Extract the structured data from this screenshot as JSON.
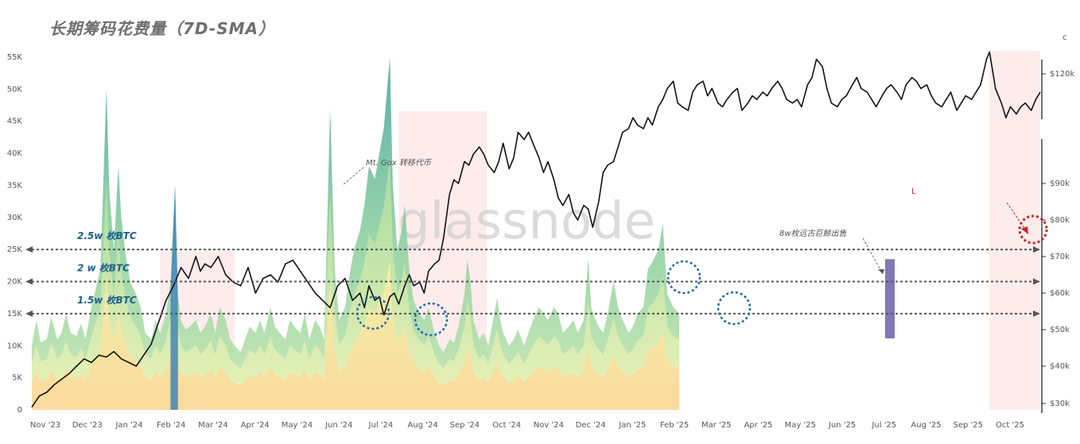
{
  "title": "长期筹码花费量（7D-SMA）",
  "watermark": "glassnode",
  "chart_data": {
    "type": "area",
    "title": "长期筹码花费量（7D-SMA）",
    "x_ticks": [
      "Nov '23",
      "Dec '23",
      "Jan '24",
      "Feb '24",
      "Mar '24",
      "Apr '24",
      "May '24",
      "Jun '24",
      "Jul '24",
      "Aug '24",
      "Sep '24",
      "Oct '24",
      "Nov '24",
      "Dec '24",
      "Jan '25",
      "Feb '25",
      "Mar '25",
      "Apr '25",
      "May '25",
      "Jun '25",
      "Jul '25",
      "Aug '25",
      "Sep '25",
      "Oct '25"
    ],
    "left_axis": {
      "ticks": [
        "0",
        "5K",
        "10K",
        "15K",
        "20K",
        "25K",
        "30K",
        "35K",
        "40K",
        "45K",
        "50K",
        "55K"
      ],
      "ylim": [
        0,
        55000
      ]
    },
    "right_axis": {
      "ticks": [
        "$30k",
        "$40k",
        "$50k",
        "$60k",
        "$70k",
        "$80k",
        "$90k",
        "$120k"
      ]
    },
    "spent_btc_7d_sma": [
      [
        0,
        10000
      ],
      [
        0.3,
        14000
      ],
      [
        0.6,
        10500
      ],
      [
        1,
        11000
      ],
      [
        1.3,
        14500
      ],
      [
        1.7,
        11000
      ],
      [
        2,
        12000
      ],
      [
        2.3,
        15000
      ],
      [
        2.6,
        12000
      ],
      [
        3,
        11500
      ],
      [
        3.3,
        13500
      ],
      [
        3.6,
        11000
      ],
      [
        4,
        16000
      ],
      [
        4.3,
        19000
      ],
      [
        4.6,
        22000
      ],
      [
        5,
        50000
      ],
      [
        5.2,
        34000
      ],
      [
        5.5,
        25000
      ],
      [
        5.8,
        38000
      ],
      [
        6,
        30000
      ],
      [
        6.3,
        24000
      ],
      [
        6.6,
        20000
      ],
      [
        7,
        18000
      ],
      [
        7.3,
        16000
      ],
      [
        7.6,
        12000
      ],
      [
        8,
        11000
      ],
      [
        8.3,
        14000
      ],
      [
        8.6,
        12000
      ],
      [
        9,
        15000
      ],
      [
        9.3,
        20000
      ],
      [
        9.6,
        35000
      ],
      [
        9.8,
        18000
      ],
      [
        10,
        14000
      ],
      [
        10.3,
        12500
      ],
      [
        10.6,
        13000
      ],
      [
        11,
        14000
      ],
      [
        11.3,
        12000
      ],
      [
        11.6,
        13000
      ],
      [
        12,
        15000
      ],
      [
        12.3,
        12000
      ],
      [
        12.6,
        16000
      ],
      [
        13,
        14000
      ],
      [
        13.3,
        11000
      ],
      [
        13.6,
        10000
      ],
      [
        14,
        9000
      ],
      [
        14.3,
        11000
      ],
      [
        14.6,
        13000
      ],
      [
        15,
        12000
      ],
      [
        15.3,
        14000
      ],
      [
        15.6,
        12000
      ],
      [
        16,
        16000
      ],
      [
        16.3,
        13000
      ],
      [
        16.6,
        12000
      ],
      [
        17,
        11000
      ],
      [
        17.3,
        14000
      ],
      [
        17.6,
        13000
      ],
      [
        18,
        12000
      ],
      [
        18.3,
        15000
      ],
      [
        18.6,
        11000
      ],
      [
        19,
        14000
      ],
      [
        19.3,
        13000
      ],
      [
        19.6,
        11000
      ],
      [
        20,
        47000
      ],
      [
        20.3,
        22000
      ],
      [
        20.6,
        14000
      ],
      [
        21,
        16000
      ],
      [
        21.3,
        21000
      ],
      [
        21.6,
        25000
      ],
      [
        22,
        28000
      ],
      [
        22.3,
        32000
      ],
      [
        22.6,
        38000
      ],
      [
        23,
        36000
      ],
      [
        23.3,
        40000
      ],
      [
        23.6,
        44000
      ],
      [
        24,
        55000
      ],
      [
        24.2,
        35000
      ],
      [
        24.5,
        25000
      ],
      [
        24.8,
        28000
      ],
      [
        25,
        32000
      ],
      [
        25.3,
        22000
      ],
      [
        25.6,
        17000
      ],
      [
        26,
        15000
      ],
      [
        26.3,
        14000
      ],
      [
        26.6,
        16000
      ],
      [
        27,
        12000
      ],
      [
        27.3,
        10000
      ],
      [
        27.6,
        9000
      ],
      [
        28,
        11000
      ],
      [
        28.3,
        10500
      ],
      [
        28.6,
        13000
      ],
      [
        29,
        18000
      ],
      [
        29.2,
        23500
      ],
      [
        29.4,
        20000
      ],
      [
        29.6,
        14000
      ],
      [
        30,
        11000
      ],
      [
        30.3,
        12000
      ],
      [
        30.6,
        10000
      ],
      [
        31,
        15000
      ],
      [
        31.2,
        17500
      ],
      [
        31.4,
        14000
      ],
      [
        31.6,
        12000
      ],
      [
        32,
        10000
      ],
      [
        32.3,
        11000
      ],
      [
        32.6,
        12500
      ],
      [
        33,
        10000
      ],
      [
        33.3,
        12000
      ],
      [
        33.6,
        14000
      ],
      [
        34,
        16000
      ],
      [
        34.3,
        15000
      ],
      [
        34.6,
        14000
      ],
      [
        35,
        16000
      ],
      [
        35.3,
        15000
      ],
      [
        35.6,
        12000
      ],
      [
        36,
        13000
      ],
      [
        36.3,
        14000
      ],
      [
        36.6,
        12000
      ],
      [
        37,
        14000
      ],
      [
        37.3,
        23500
      ],
      [
        37.5,
        16000
      ],
      [
        37.8,
        14000
      ],
      [
        38,
        13000
      ],
      [
        38.3,
        12000
      ],
      [
        38.6,
        15000
      ],
      [
        39,
        20000
      ],
      [
        39.3,
        16000
      ],
      [
        39.6,
        14000
      ],
      [
        40,
        12000
      ],
      [
        40.3,
        13000
      ],
      [
        40.6,
        15000
      ],
      [
        41,
        16000
      ],
      [
        41.3,
        22000
      ],
      [
        41.6,
        23000
      ],
      [
        42,
        25000
      ],
      [
        42.3,
        29000
      ],
      [
        42.6,
        18000
      ],
      [
        43,
        16000
      ],
      [
        43.4,
        15000
      ]
    ],
    "price_usd": [
      [
        0,
        29000
      ],
      [
        0.5,
        32000
      ],
      [
        1,
        33000
      ],
      [
        1.5,
        35000
      ],
      [
        2,
        36500
      ],
      [
        2.5,
        38000
      ],
      [
        3,
        40000
      ],
      [
        3.5,
        42000
      ],
      [
        4,
        41000
      ],
      [
        4.5,
        43000
      ],
      [
        5,
        42500
      ],
      [
        5.5,
        44000
      ],
      [
        6,
        42000
      ],
      [
        6.5,
        41000
      ],
      [
        7,
        40000
      ],
      [
        7.5,
        43000
      ],
      [
        8,
        46000
      ],
      [
        8.5,
        52000
      ],
      [
        9,
        58000
      ],
      [
        9.5,
        62000
      ],
      [
        10,
        67000
      ],
      [
        10.5,
        64000
      ],
      [
        11,
        70000
      ],
      [
        11.3,
        66000
      ],
      [
        11.6,
        68000
      ],
      [
        12,
        67000
      ],
      [
        12.5,
        70000
      ],
      [
        13,
        65000
      ],
      [
        13.5,
        63000
      ],
      [
        14,
        62000
      ],
      [
        14.5,
        67000
      ],
      [
        15,
        60000
      ],
      [
        15.5,
        64000
      ],
      [
        16,
        65000
      ],
      [
        16.5,
        63000
      ],
      [
        17,
        68000
      ],
      [
        17.5,
        69000
      ],
      [
        18,
        66000
      ],
      [
        18.5,
        63000
      ],
      [
        19,
        60000
      ],
      [
        19.5,
        58000
      ],
      [
        20,
        56000
      ],
      [
        20.5,
        62000
      ],
      [
        21,
        64000
      ],
      [
        21.5,
        58000
      ],
      [
        22,
        60000
      ],
      [
        22.3,
        56000
      ],
      [
        22.6,
        62000
      ],
      [
        23,
        58000
      ],
      [
        23.3,
        59000
      ],
      [
        23.6,
        54000
      ],
      [
        24,
        59000
      ],
      [
        24.3,
        60000
      ],
      [
        24.6,
        57000
      ],
      [
        25,
        62000
      ],
      [
        25.3,
        65000
      ],
      [
        25.6,
        62000
      ],
      [
        26,
        63000
      ],
      [
        26.3,
        60000
      ],
      [
        26.6,
        66000
      ],
      [
        27,
        68000
      ],
      [
        27.3,
        69000
      ],
      [
        27.6,
        75000
      ],
      [
        28,
        87000
      ],
      [
        28.3,
        91000
      ],
      [
        28.6,
        90000
      ],
      [
        29,
        96000
      ],
      [
        29.3,
        95000
      ],
      [
        29.6,
        98000
      ],
      [
        30,
        100000
      ],
      [
        30.3,
        98000
      ],
      [
        30.6,
        95000
      ],
      [
        31,
        93000
      ],
      [
        31.3,
        96000
      ],
      [
        31.6,
        101000
      ],
      [
        32,
        94000
      ],
      [
        32.3,
        97000
      ],
      [
        32.6,
        104000
      ],
      [
        33,
        102000
      ],
      [
        33.3,
        104000
      ],
      [
        33.6,
        101000
      ],
      [
        34,
        97000
      ],
      [
        34.3,
        93000
      ],
      [
        34.6,
        96000
      ],
      [
        35,
        91000
      ],
      [
        35.3,
        86000
      ],
      [
        35.6,
        84000
      ],
      [
        36,
        87000
      ],
      [
        36.3,
        82000
      ],
      [
        36.6,
        80000
      ],
      [
        37,
        84000
      ],
      [
        37.3,
        83000
      ],
      [
        37.6,
        78000
      ],
      [
        38,
        85000
      ],
      [
        38.3,
        93000
      ],
      [
        38.6,
        95000
      ],
      [
        39,
        96000
      ],
      [
        39.3,
        100000
      ],
      [
        39.6,
        104000
      ],
      [
        40,
        105000
      ],
      [
        40.3,
        108000
      ],
      [
        40.6,
        106000
      ],
      [
        41,
        105000
      ],
      [
        41.3,
        108000
      ],
      [
        41.6,
        106000
      ],
      [
        42,
        111000
      ],
      [
        42.3,
        113000
      ],
      [
        42.6,
        116000
      ],
      [
        43,
        118000
      ],
      [
        43.3,
        112000
      ],
      [
        43.6,
        111000
      ],
      [
        44,
        110000
      ],
      [
        44.3,
        115000
      ],
      [
        44.6,
        117000
      ],
      [
        45,
        118000
      ],
      [
        45.3,
        114000
      ],
      [
        45.6,
        116000
      ],
      [
        46,
        112000
      ],
      [
        46.3,
        111000
      ],
      [
        46.6,
        113000
      ],
      [
        47,
        115000
      ],
      [
        47.3,
        116000
      ],
      [
        47.6,
        110000
      ],
      [
        48,
        112000
      ],
      [
        48.3,
        114000
      ],
      [
        48.6,
        113000
      ],
      [
        49,
        115000
      ],
      [
        49.3,
        114000
      ],
      [
        49.6,
        116000
      ],
      [
        50,
        118000
      ],
      [
        50.3,
        116000
      ],
      [
        50.6,
        113000
      ],
      [
        51,
        112000
      ],
      [
        51.3,
        113000
      ],
      [
        51.6,
        111000
      ],
      [
        52,
        117000
      ],
      [
        52.3,
        119000
      ],
      [
        52.6,
        124000
      ],
      [
        53,
        122000
      ],
      [
        53.3,
        116000
      ],
      [
        53.6,
        112000
      ],
      [
        54,
        111000
      ],
      [
        54.3,
        113000
      ],
      [
        54.6,
        114000
      ],
      [
        55,
        117000
      ],
      [
        55.3,
        119000
      ],
      [
        55.6,
        116000
      ],
      [
        56,
        115000
      ],
      [
        56.3,
        113000
      ],
      [
        56.6,
        111000
      ],
      [
        57,
        114000
      ],
      [
        57.3,
        116000
      ],
      [
        57.6,
        117000
      ],
      [
        58,
        115000
      ],
      [
        58.3,
        113000
      ],
      [
        58.6,
        117000
      ],
      [
        59,
        119000
      ],
      [
        59.3,
        118000
      ],
      [
        59.6,
        116000
      ],
      [
        60,
        117000
      ],
      [
        60.3,
        114000
      ],
      [
        60.6,
        112000
      ],
      [
        61,
        111000
      ],
      [
        61.3,
        113000
      ],
      [
        61.6,
        115000
      ],
      [
        62,
        110000
      ],
      [
        62.3,
        112000
      ],
      [
        62.6,
        114000
      ],
      [
        63,
        113000
      ],
      [
        63.3,
        115000
      ],
      [
        63.6,
        117000
      ],
      [
        64,
        124000
      ],
      [
        64.2,
        126000
      ],
      [
        64.4,
        121000
      ],
      [
        64.6,
        116000
      ],
      [
        65,
        112000
      ],
      [
        65.3,
        108000
      ],
      [
        65.6,
        111000
      ],
      [
        66,
        109000
      ],
      [
        66.3,
        111000
      ],
      [
        66.6,
        112000
      ],
      [
        67,
        110000
      ],
      [
        67.3,
        113000
      ],
      [
        67.6,
        115000
      ]
    ],
    "levels": [
      {
        "label": "2.5w 枚BTC",
        "value": 25000
      },
      {
        "label": "2 w 枚BTC",
        "value": 20000
      },
      {
        "label": "1.5w 枚BTC",
        "value": 15000
      }
    ],
    "annotations": [
      "Mt. Gox 转移代币",
      "8w枚远古巨鲸出售",
      "L"
    ],
    "shaded_ranges": [
      [
        8.6,
        13.6
      ],
      [
        24.6,
        30.5
      ],
      [
        64.2,
        67.6
      ]
    ]
  }
}
